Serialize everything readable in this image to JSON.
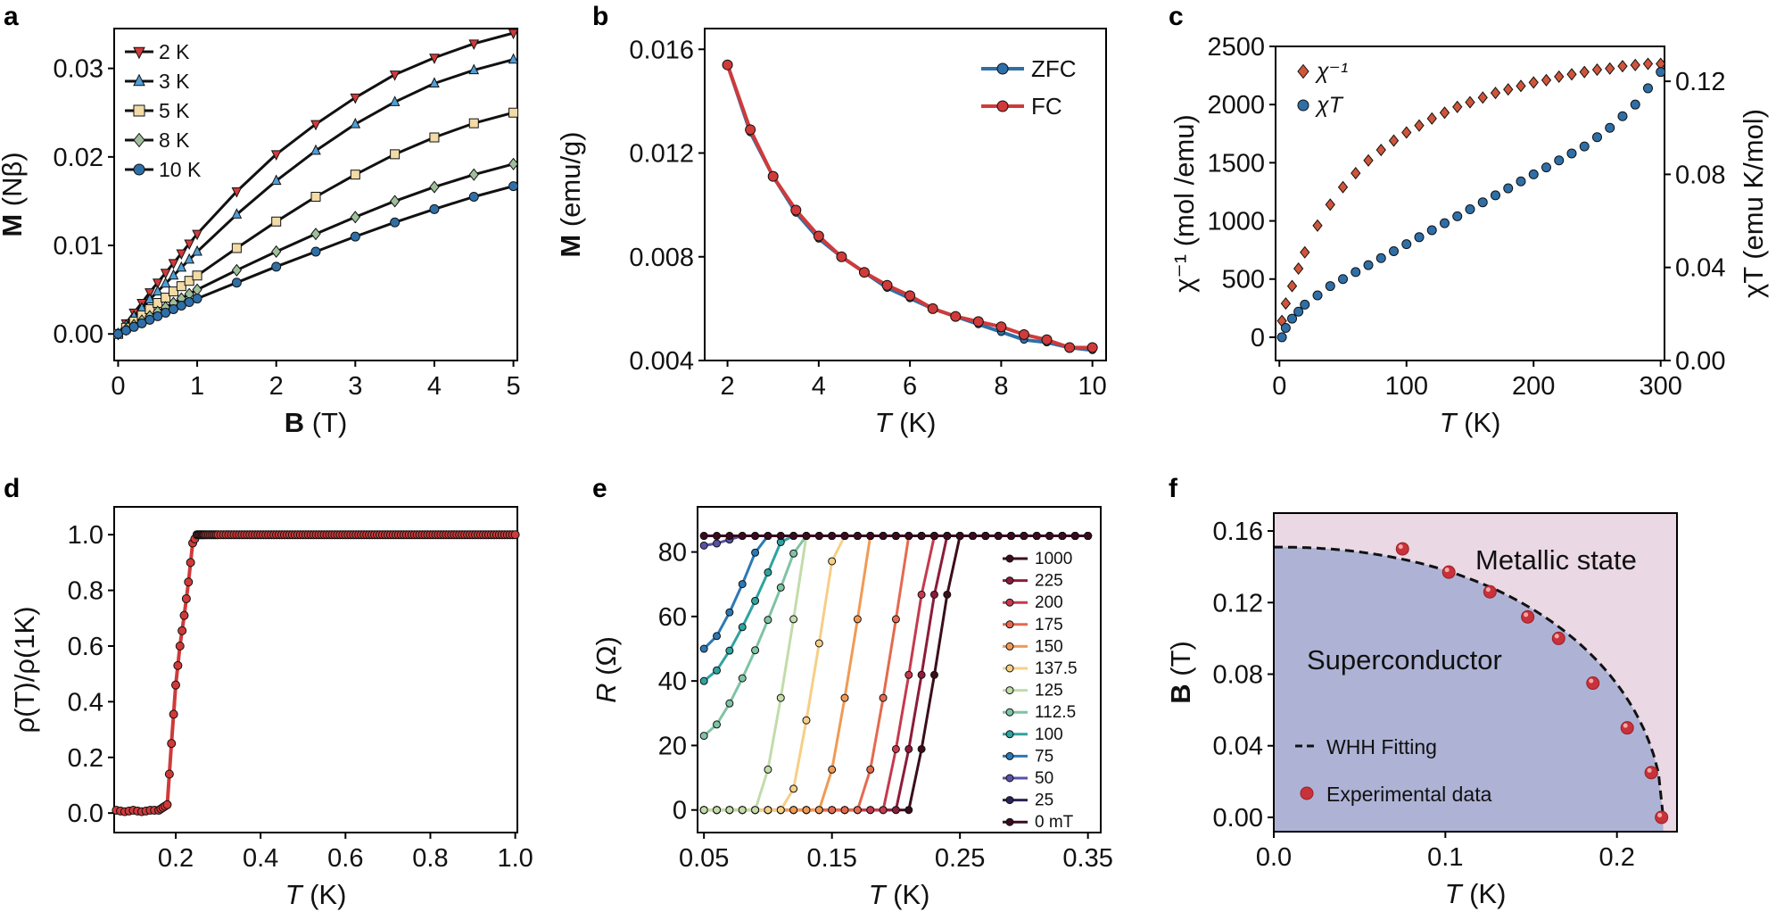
{
  "colors": {
    "red": "#d03a3a",
    "dark_red": "#8b1c22",
    "blue": "#2e6fa8",
    "navy": "#1f3a5a",
    "cream": "#f2dba6",
    "sage": "#9fbf9b",
    "black": "#111111",
    "phase_sc": "#aeb3d6",
    "phase_metal": "#ead8e4"
  },
  "chart_data": [
    {
      "panel": "a",
      "type": "line",
      "xlabel_bold": "B",
      "xlabel_unit": " (T)",
      "ylabel_bold": "M",
      "ylabel_unit": " (Nβ)",
      "xlim": [
        -0.05,
        5.05
      ],
      "ylim": [
        -0.003,
        0.0345
      ],
      "xticks": [
        0,
        1,
        2,
        3,
        4,
        5
      ],
      "yticks": [
        0.0,
        0.01,
        0.02,
        0.03
      ],
      "yticklabels": [
        "0.00",
        "0.01",
        "0.02",
        "0.03"
      ],
      "series": [
        {
          "name": "2 K",
          "marker": "tri-down",
          "color": "#d03a3a",
          "x": [
            0,
            0.1,
            0.2,
            0.3,
            0.4,
            0.5,
            0.6,
            0.7,
            0.8,
            0.9,
            1.0,
            1.5,
            2.0,
            2.5,
            3.0,
            3.5,
            4.0,
            4.5,
            5.0
          ],
          "y": [
            0.0,
            0.0012,
            0.0024,
            0.0035,
            0.0047,
            0.0058,
            0.0069,
            0.008,
            0.0091,
            0.0102,
            0.0113,
            0.0161,
            0.0203,
            0.0237,
            0.0267,
            0.0293,
            0.0312,
            0.0328,
            0.034
          ]
        },
        {
          "name": "3 K",
          "marker": "tri-up",
          "color": "#4f9fd6",
          "x": [
            0,
            0.1,
            0.2,
            0.3,
            0.4,
            0.5,
            0.6,
            0.7,
            0.8,
            0.9,
            1.0,
            1.5,
            2.0,
            2.5,
            3.0,
            3.5,
            4.0,
            4.5,
            5.0
          ],
          "y": [
            0.0,
            0.001,
            0.002,
            0.0029,
            0.0039,
            0.0048,
            0.0057,
            0.0066,
            0.0075,
            0.0084,
            0.0093,
            0.0135,
            0.0173,
            0.0207,
            0.0237,
            0.0262,
            0.0283,
            0.0298,
            0.031
          ]
        },
        {
          "name": "5 K",
          "marker": "square",
          "color": "#f2dba6",
          "x": [
            0,
            0.1,
            0.2,
            0.3,
            0.4,
            0.5,
            0.6,
            0.7,
            0.8,
            0.9,
            1.0,
            1.5,
            2.0,
            2.5,
            3.0,
            3.5,
            4.0,
            4.5,
            5.0
          ],
          "y": [
            0.0,
            0.0007,
            0.0014,
            0.0021,
            0.0028,
            0.0035,
            0.0041,
            0.0048,
            0.0054,
            0.006,
            0.0066,
            0.0097,
            0.0127,
            0.0155,
            0.018,
            0.0203,
            0.0222,
            0.0238,
            0.025
          ]
        },
        {
          "name": "8 K",
          "marker": "diamond",
          "color": "#9fbf9b",
          "x": [
            0,
            0.1,
            0.2,
            0.3,
            0.4,
            0.5,
            0.6,
            0.7,
            0.8,
            0.9,
            1.0,
            1.5,
            2.0,
            2.5,
            3.0,
            3.5,
            4.0,
            4.5,
            5.0
          ],
          "y": [
            0.0,
            0.0005,
            0.001,
            0.0015,
            0.002,
            0.0025,
            0.003,
            0.0035,
            0.004,
            0.0045,
            0.005,
            0.0072,
            0.0093,
            0.0113,
            0.0132,
            0.015,
            0.0166,
            0.018,
            0.0192
          ]
        },
        {
          "name": "10 K",
          "marker": "circle",
          "color": "#2e6fa8",
          "x": [
            0,
            0.1,
            0.2,
            0.3,
            0.4,
            0.5,
            0.6,
            0.7,
            0.8,
            0.9,
            1.0,
            1.5,
            2.0,
            2.5,
            3.0,
            3.5,
            4.0,
            4.5,
            5.0
          ],
          "y": [
            0.0,
            0.0004,
            0.0008,
            0.0012,
            0.0016,
            0.002,
            0.0024,
            0.0028,
            0.0032,
            0.0036,
            0.004,
            0.0058,
            0.0076,
            0.0093,
            0.011,
            0.0126,
            0.0141,
            0.0155,
            0.0167
          ]
        }
      ]
    },
    {
      "panel": "b",
      "type": "line",
      "xlabel_italic": "T",
      "xlabel_unit": " (K)",
      "ylabel_bold": "M",
      "ylabel_unit": " (emu/g)",
      "xlim": [
        1.5,
        10.3
      ],
      "ylim": [
        0.004,
        0.0168
      ],
      "xticks": [
        2,
        4,
        6,
        8,
        10
      ],
      "yticks": [
        0.004,
        0.008,
        0.012,
        0.016
      ],
      "yticklabels": [
        "0.004",
        "0.008",
        "0.012",
        "0.016"
      ],
      "series": [
        {
          "name": "ZFC",
          "color": "#2e6fa8",
          "x": [
            2,
            2.5,
            3,
            3.5,
            4,
            4.5,
            5,
            5.5,
            6,
            6.5,
            7,
            7.5,
            8,
            8.5,
            9,
            9.5,
            10
          ],
          "y": [
            0.0154,
            0.0128,
            0.0111,
            0.0097,
            0.0087,
            0.008,
            0.0074,
            0.0068,
            0.0064,
            0.006,
            0.0057,
            0.0054,
            0.0051,
            0.0048,
            0.0047,
            0.0045,
            0.0044
          ]
        },
        {
          "name": "FC",
          "color": "#d03a3a",
          "x": [
            2,
            2.5,
            3,
            3.5,
            4,
            4.5,
            5,
            5.5,
            6,
            6.5,
            7,
            7.5,
            8,
            8.5,
            9,
            9.5,
            10
          ],
          "y": [
            0.0154,
            0.0129,
            0.0111,
            0.0098,
            0.0088,
            0.008,
            0.0074,
            0.0069,
            0.0065,
            0.006,
            0.0057,
            0.0055,
            0.0053,
            0.005,
            0.0048,
            0.0045,
            0.0045
          ]
        }
      ]
    },
    {
      "panel": "c",
      "type": "scatter",
      "xlabel_italic": "T",
      "xlabel_unit": " (K)",
      "ylabel": "χ⁻¹ (mol /emu)",
      "y2label": "χT (emu K/mol)",
      "xlim": [
        -3,
        303
      ],
      "ylim": [
        -200,
        2500
      ],
      "y2lim": [
        0,
        0.135
      ],
      "xticks": [
        0,
        100,
        200,
        300
      ],
      "yticks": [
        0,
        500,
        1000,
        1500,
        2000,
        2500
      ],
      "y2ticks": [
        0,
        0.04,
        0.08,
        0.12
      ],
      "y2ticklabels": [
        "0.00",
        "0.04",
        "0.08",
        "0.12"
      ],
      "series": [
        {
          "name": "χ⁻¹",
          "axis": "left",
          "marker": "diamond",
          "color": "#d0553a",
          "x": [
            2,
            5,
            10,
            15,
            20,
            30,
            40,
            50,
            60,
            70,
            80,
            90,
            100,
            110,
            120,
            130,
            140,
            150,
            160,
            170,
            180,
            190,
            200,
            210,
            220,
            230,
            240,
            250,
            260,
            270,
            280,
            290,
            300
          ],
          "y": [
            140,
            290,
            440,
            590,
            730,
            960,
            1140,
            1290,
            1410,
            1520,
            1610,
            1690,
            1760,
            1820,
            1880,
            1930,
            1980,
            2020,
            2060,
            2100,
            2130,
            2160,
            2190,
            2210,
            2240,
            2260,
            2280,
            2300,
            2310,
            2330,
            2340,
            2350,
            2350
          ]
        },
        {
          "name": "χT",
          "axis": "right",
          "marker": "circle",
          "color": "#2e6fa8",
          "x": [
            2,
            5,
            10,
            15,
            20,
            30,
            40,
            50,
            60,
            70,
            80,
            90,
            100,
            110,
            120,
            130,
            140,
            150,
            160,
            170,
            180,
            190,
            200,
            210,
            220,
            230,
            240,
            250,
            260,
            270,
            280,
            290,
            300
          ],
          "y": [
            0.01,
            0.014,
            0.018,
            0.021,
            0.024,
            0.028,
            0.032,
            0.035,
            0.038,
            0.041,
            0.044,
            0.047,
            0.05,
            0.053,
            0.056,
            0.059,
            0.062,
            0.065,
            0.068,
            0.071,
            0.074,
            0.077,
            0.08,
            0.083,
            0.086,
            0.089,
            0.092,
            0.096,
            0.1,
            0.105,
            0.11,
            0.117,
            0.124
          ]
        }
      ]
    },
    {
      "panel": "d",
      "type": "line",
      "xlabel_italic": "T",
      "xlabel_unit": " (K)",
      "ylabel": "ρ(T)/ρ(1K)",
      "xlim": [
        0.055,
        1.005
      ],
      "ylim": [
        -0.07,
        1.1
      ],
      "xticks": [
        0.2,
        0.4,
        0.6,
        0.8,
        1.0
      ],
      "xticklabels": [
        "0.2",
        "0.4",
        "0.6",
        "0.8",
        "1.0"
      ],
      "yticks": [
        0.0,
        0.2,
        0.4,
        0.6,
        0.8,
        1.0
      ],
      "yticklabels": [
        "0.0",
        "0.2",
        "0.4",
        "0.6",
        "0.8",
        "1.0"
      ],
      "series": [
        {
          "name": "rho",
          "color": "#d03a3a",
          "x": [
            0.06,
            0.08,
            0.1,
            0.12,
            0.14,
            0.16,
            0.17,
            0.18,
            0.19,
            0.2,
            0.21,
            0.22,
            0.23,
            0.24,
            0.25,
            0.27,
            0.3,
            0.35,
            0.4,
            0.45,
            0.5,
            0.55,
            0.6,
            0.65,
            0.7,
            0.75,
            0.8,
            0.85,
            0.9,
            0.95,
            1.0
          ],
          "y": [
            0.01,
            0.005,
            0.01,
            0.005,
            0.01,
            0.01,
            0.02,
            0.03,
            0.25,
            0.46,
            0.6,
            0.71,
            0.83,
            0.97,
            1.0,
            1.0,
            1.0,
            1.0,
            1.0,
            1.0,
            1.0,
            1.0,
            1.0,
            1.0,
            1.0,
            1.0,
            1.0,
            1.0,
            1.0,
            1.0,
            1.0
          ]
        }
      ]
    },
    {
      "panel": "e",
      "type": "line",
      "xlabel_italic": "T",
      "xlabel_unit": " (K)",
      "ylabel_italic": "R",
      "ylabel_unit": " (Ω)",
      "xlim": [
        0.045,
        0.36
      ],
      "ylim": [
        -7,
        94
      ],
      "xticks": [
        0.05,
        0.15,
        0.25,
        0.35
      ],
      "xticklabels": [
        "0.05",
        "0.15",
        "0.25",
        "0.35"
      ],
      "yticks": [
        0,
        20,
        40,
        60,
        80
      ],
      "series": [
        {
          "name": "1000",
          "color": "#3a0e1a"
        },
        {
          "name": "225",
          "color": "#8b1c3a"
        },
        {
          "name": "200",
          "color": "#c53a4e"
        },
        {
          "name": "175",
          "color": "#e46a4f"
        },
        {
          "name": "150",
          "color": "#f09a55"
        },
        {
          "name": "137.5",
          "color": "#f6cf86"
        },
        {
          "name": "125",
          "color": "#c2dcaa"
        },
        {
          "name": "112.5",
          "color": "#7fc3a4"
        },
        {
          "name": "100",
          "color": "#2fa3a0"
        },
        {
          "name": "75",
          "color": "#2c78b4"
        },
        {
          "name": "50",
          "color": "#5752a6"
        },
        {
          "name": "25",
          "color": "#2b2357"
        },
        {
          "name": "0 mT",
          "color": "#3b0a1f"
        }
      ]
    },
    {
      "panel": "f",
      "type": "scatter",
      "xlabel_italic": "T",
      "xlabel_unit": " (K)",
      "ylabel_bold": "B",
      "ylabel_unit": " (T)",
      "xlim": [
        0.0,
        0.235
      ],
      "ylim": [
        -0.008,
        0.17
      ],
      "xticks": [
        0.0,
        0.1,
        0.2
      ],
      "xticklabels": [
        "0.0",
        "0.1",
        "0.2"
      ],
      "yticks": [
        0.0,
        0.04,
        0.08,
        0.12,
        0.16
      ],
      "yticklabels": [
        "0.00",
        "0.04",
        "0.08",
        "0.12",
        "0.16"
      ],
      "fit_name": "WHH Fitting",
      "data_name": "Experimental data",
      "Tc": 0.227,
      "Bc0": 0.151,
      "x": [
        0.075,
        0.102,
        0.126,
        0.148,
        0.166,
        0.186,
        0.206,
        0.22,
        0.226
      ],
      "y": [
        0.15,
        0.137,
        0.126,
        0.112,
        0.1,
        0.075,
        0.05,
        0.025,
        0.0
      ],
      "region_labels": [
        "Metallic state",
        "Superconductor"
      ]
    }
  ],
  "panel_letters": [
    "a",
    "b",
    "c",
    "d",
    "e",
    "f"
  ]
}
